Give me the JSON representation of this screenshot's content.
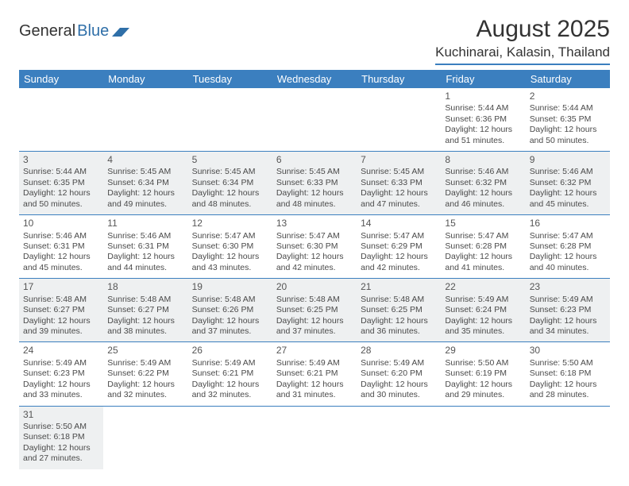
{
  "brand": {
    "part1": "General",
    "part2": "Blue",
    "accent": "#2f6fa8"
  },
  "title": "August 2025",
  "location": "Kuchinarai, Kalasin, Thailand",
  "colors": {
    "header_bg": "#3b7fbf",
    "header_text": "#ffffff",
    "row_alt_bg": "#eef0f1",
    "rule": "#3b7fbf"
  },
  "weekdays": [
    "Sunday",
    "Monday",
    "Tuesday",
    "Wednesday",
    "Thursday",
    "Friday",
    "Saturday"
  ],
  "weeks": [
    [
      null,
      null,
      null,
      null,
      null,
      {
        "n": "1",
        "sr": "5:44 AM",
        "ss": "6:36 PM",
        "dl": "12 hours and 51 minutes."
      },
      {
        "n": "2",
        "sr": "5:44 AM",
        "ss": "6:35 PM",
        "dl": "12 hours and 50 minutes."
      }
    ],
    [
      {
        "n": "3",
        "sr": "5:44 AM",
        "ss": "6:35 PM",
        "dl": "12 hours and 50 minutes."
      },
      {
        "n": "4",
        "sr": "5:45 AM",
        "ss": "6:34 PM",
        "dl": "12 hours and 49 minutes."
      },
      {
        "n": "5",
        "sr": "5:45 AM",
        "ss": "6:34 PM",
        "dl": "12 hours and 48 minutes."
      },
      {
        "n": "6",
        "sr": "5:45 AM",
        "ss": "6:33 PM",
        "dl": "12 hours and 48 minutes."
      },
      {
        "n": "7",
        "sr": "5:45 AM",
        "ss": "6:33 PM",
        "dl": "12 hours and 47 minutes."
      },
      {
        "n": "8",
        "sr": "5:46 AM",
        "ss": "6:32 PM",
        "dl": "12 hours and 46 minutes."
      },
      {
        "n": "9",
        "sr": "5:46 AM",
        "ss": "6:32 PM",
        "dl": "12 hours and 45 minutes."
      }
    ],
    [
      {
        "n": "10",
        "sr": "5:46 AM",
        "ss": "6:31 PM",
        "dl": "12 hours and 45 minutes."
      },
      {
        "n": "11",
        "sr": "5:46 AM",
        "ss": "6:31 PM",
        "dl": "12 hours and 44 minutes."
      },
      {
        "n": "12",
        "sr": "5:47 AM",
        "ss": "6:30 PM",
        "dl": "12 hours and 43 minutes."
      },
      {
        "n": "13",
        "sr": "5:47 AM",
        "ss": "6:30 PM",
        "dl": "12 hours and 42 minutes."
      },
      {
        "n": "14",
        "sr": "5:47 AM",
        "ss": "6:29 PM",
        "dl": "12 hours and 42 minutes."
      },
      {
        "n": "15",
        "sr": "5:47 AM",
        "ss": "6:28 PM",
        "dl": "12 hours and 41 minutes."
      },
      {
        "n": "16",
        "sr": "5:47 AM",
        "ss": "6:28 PM",
        "dl": "12 hours and 40 minutes."
      }
    ],
    [
      {
        "n": "17",
        "sr": "5:48 AM",
        "ss": "6:27 PM",
        "dl": "12 hours and 39 minutes."
      },
      {
        "n": "18",
        "sr": "5:48 AM",
        "ss": "6:27 PM",
        "dl": "12 hours and 38 minutes."
      },
      {
        "n": "19",
        "sr": "5:48 AM",
        "ss": "6:26 PM",
        "dl": "12 hours and 37 minutes."
      },
      {
        "n": "20",
        "sr": "5:48 AM",
        "ss": "6:25 PM",
        "dl": "12 hours and 37 minutes."
      },
      {
        "n": "21",
        "sr": "5:48 AM",
        "ss": "6:25 PM",
        "dl": "12 hours and 36 minutes."
      },
      {
        "n": "22",
        "sr": "5:49 AM",
        "ss": "6:24 PM",
        "dl": "12 hours and 35 minutes."
      },
      {
        "n": "23",
        "sr": "5:49 AM",
        "ss": "6:23 PM",
        "dl": "12 hours and 34 minutes."
      }
    ],
    [
      {
        "n": "24",
        "sr": "5:49 AM",
        "ss": "6:23 PM",
        "dl": "12 hours and 33 minutes."
      },
      {
        "n": "25",
        "sr": "5:49 AM",
        "ss": "6:22 PM",
        "dl": "12 hours and 32 minutes."
      },
      {
        "n": "26",
        "sr": "5:49 AM",
        "ss": "6:21 PM",
        "dl": "12 hours and 32 minutes."
      },
      {
        "n": "27",
        "sr": "5:49 AM",
        "ss": "6:21 PM",
        "dl": "12 hours and 31 minutes."
      },
      {
        "n": "28",
        "sr": "5:49 AM",
        "ss": "6:20 PM",
        "dl": "12 hours and 30 minutes."
      },
      {
        "n": "29",
        "sr": "5:50 AM",
        "ss": "6:19 PM",
        "dl": "12 hours and 29 minutes."
      },
      {
        "n": "30",
        "sr": "5:50 AM",
        "ss": "6:18 PM",
        "dl": "12 hours and 28 minutes."
      }
    ],
    [
      {
        "n": "31",
        "sr": "5:50 AM",
        "ss": "6:18 PM",
        "dl": "12 hours and 27 minutes."
      },
      null,
      null,
      null,
      null,
      null,
      null
    ]
  ],
  "labels": {
    "sunrise": "Sunrise: ",
    "sunset": "Sunset: ",
    "daylight": "Daylight: "
  }
}
